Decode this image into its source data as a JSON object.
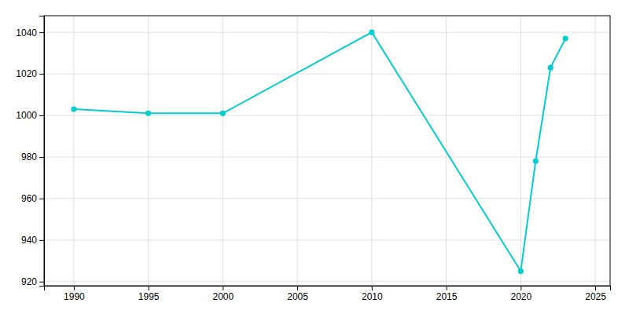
{
  "chart_data": {
    "type": "line",
    "x": [
      1990,
      1995,
      2000,
      2010,
      2020,
      2021,
      2022,
      2023
    ],
    "values": [
      1003,
      1001,
      1001,
      1040,
      925,
      978,
      1023,
      1037
    ],
    "color": "#00CED1",
    "marker": "circle",
    "xlim": [
      1988,
      2026
    ],
    "ylim": [
      918,
      1048
    ],
    "xticks": [
      1990,
      1995,
      2000,
      2005,
      2010,
      2015,
      2020,
      2025
    ],
    "yticks": [
      920,
      940,
      960,
      980,
      1000,
      1020,
      1040
    ],
    "grid": true
  }
}
